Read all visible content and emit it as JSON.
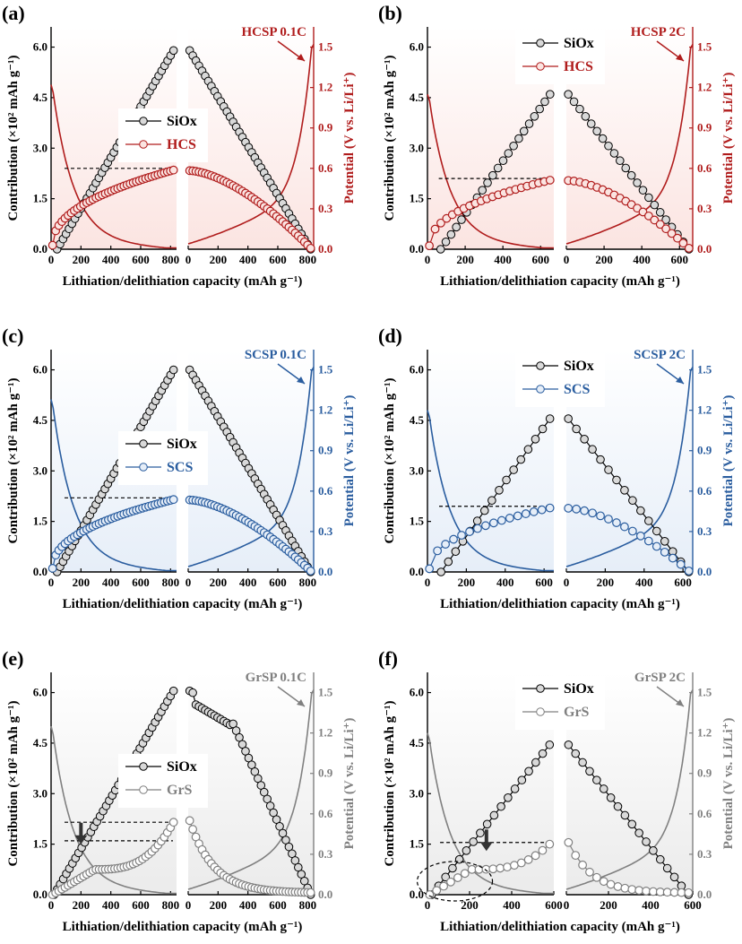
{
  "chart_data": [
    {
      "type": "line",
      "panel_label": "(a)",
      "annotation": "HCSP 0.1C",
      "accent": "#b01c1c",
      "fill": "#fbe4e1",
      "xlabel": "Lithiation/delithiation capacity (mAh g⁻¹)",
      "ylabel_left": "Contribution (×10² mAh g⁻¹)",
      "ylabel_right": "Potential (V vs. Li/Li⁺)",
      "xticks_left": [
        "0",
        "200",
        "400",
        "600",
        "800"
      ],
      "xticks_right": [
        "0",
        "200",
        "400",
        "600",
        "800"
      ],
      "yticks_left": [
        "0.0",
        "1.5",
        "3.0",
        "4.5",
        "6.0"
      ],
      "yticks_right": [
        "0.0",
        "0.3",
        "0.6",
        "0.9",
        "1.2",
        "1.5"
      ],
      "ylim_left": [
        0,
        6.6
      ],
      "ylim_right": [
        0,
        1.65
      ],
      "legend": [
        "SiOx",
        "HCS"
      ],
      "dashed_lines": [
        2.4
      ],
      "lith_cap": 840,
      "delith_cap": 840,
      "siox_onset": 40,
      "siox_max": 5.9,
      "siox_delith_plateau": false,
      "carbon_end": 2.35,
      "carbon_shape": "ramp",
      "n_points": 40,
      "curve_start": 1.22,
      "curve_end": 1.52,
      "show_arrow": false,
      "show_circle": false
    },
    {
      "type": "line",
      "panel_label": "(b)",
      "annotation": "HCSP 2C",
      "accent": "#b01c1c",
      "fill": "#fbe4e1",
      "xlabel": "Lithiation/delithiation capacity (mAh g⁻¹)",
      "ylabel_left": "Contribution (×10² mAh g⁻¹)",
      "ylabel_right": "Potential (V vs. Li/Li⁺)",
      "xticks_left": [
        "0",
        "200",
        "400",
        "600"
      ],
      "xticks_right": [
        "0",
        "200",
        "400",
        "600"
      ],
      "yticks_left": [
        "0.0",
        "1.5",
        "3.0",
        "4.5",
        "6.0"
      ],
      "yticks_right": [
        "0.0",
        "0.3",
        "0.6",
        "0.9",
        "1.2",
        "1.5"
      ],
      "ylim_left": [
        0,
        6.6
      ],
      "ylim_right": [
        0,
        1.65
      ],
      "legend": [
        "SiOx",
        "HCS"
      ],
      "dashed_lines": [
        2.1
      ],
      "lith_cap": 670,
      "delith_cap": 670,
      "siox_onset": 70,
      "siox_max": 4.6,
      "siox_delith_plateau": false,
      "carbon_end": 2.05,
      "carbon_shape": "ramp",
      "n_points": 22,
      "curve_start": 1.15,
      "curve_end": 1.52,
      "show_arrow": false,
      "show_circle": false
    },
    {
      "type": "line",
      "panel_label": "(c)",
      "annotation": "SCSP 0.1C",
      "accent": "#2a5d9f",
      "fill": "#e6eef8",
      "xlabel": "Lithiation/delithiation capacity (mAh g⁻¹)",
      "ylabel_left": "Contribution (×10² mAh g⁻¹)",
      "ylabel_right": "Potential (V vs. Li/Li⁺)",
      "xticks_left": [
        "0",
        "200",
        "400",
        "600",
        "800"
      ],
      "xticks_right": [
        "0",
        "200",
        "400",
        "600",
        "800"
      ],
      "yticks_left": [
        "0.0",
        "1.5",
        "3.0",
        "4.5",
        "6.0"
      ],
      "yticks_right": [
        "0.0",
        "0.3",
        "0.6",
        "0.9",
        "1.2",
        "1.5"
      ],
      "ylim_left": [
        0,
        6.6
      ],
      "ylim_right": [
        0,
        1.65
      ],
      "legend": [
        "SiOx",
        "SCS"
      ],
      "dashed_lines": [
        2.2
      ],
      "lith_cap": 840,
      "delith_cap": 840,
      "siox_onset": 40,
      "siox_max": 6.0,
      "siox_delith_plateau": false,
      "carbon_end": 2.15,
      "carbon_shape": "ramp",
      "n_points": 40,
      "curve_start": 1.28,
      "curve_end": 1.52,
      "show_arrow": false,
      "show_circle": false
    },
    {
      "type": "line",
      "panel_label": "(d)",
      "annotation": "SCSP 2C",
      "accent": "#2a5d9f",
      "fill": "#e6eef8",
      "xlabel": "Lithiation/delithiation capacity (mAh g⁻¹)",
      "ylabel_left": "Contribution (×10² mAh g⁻¹)",
      "ylabel_right": "Potential (V vs. Li/Li⁺)",
      "xticks_left": [
        "0",
        "200",
        "400",
        "600"
      ],
      "xticks_right": [
        "0",
        "200",
        "400",
        "600"
      ],
      "yticks_left": [
        "0.0",
        "1.5",
        "3.0",
        "4.5",
        "6.0"
      ],
      "yticks_right": [
        "0.0",
        "0.3",
        "0.6",
        "0.9",
        "1.2",
        "1.5"
      ],
      "ylim_left": [
        0,
        6.6
      ],
      "ylim_right": [
        0,
        1.65
      ],
      "legend": [
        "SiOx",
        "SCS"
      ],
      "dashed_lines": [
        1.95
      ],
      "lith_cap": 650,
      "delith_cap": 650,
      "siox_onset": 70,
      "siox_max": 4.55,
      "siox_delith_plateau": false,
      "carbon_end": 1.9,
      "carbon_shape": "ramp",
      "n_points": 16,
      "curve_start": 1.2,
      "curve_end": 1.52,
      "show_arrow": false,
      "show_circle": false
    },
    {
      "type": "line",
      "panel_label": "(e)",
      "annotation": "GrSP 0.1C",
      "accent": "#808080",
      "fill": "#ebebeb",
      "xlabel": "Lithiation/delithiation capacity (mAh g⁻¹)",
      "ylabel_left": "Contribution (×10² mAh g⁻¹)",
      "ylabel_right": "Potential (V vs. Li/Li⁺)",
      "xticks_left": [
        "0",
        "200",
        "400",
        "600",
        "800"
      ],
      "xticks_right": [
        "0",
        "200",
        "400",
        "600",
        "800"
      ],
      "yticks_left": [
        "0.0",
        "1.5",
        "3.0",
        "4.5",
        "6.0"
      ],
      "yticks_right": [
        "0.0",
        "0.3",
        "0.6",
        "0.9",
        "1.2",
        "1.5"
      ],
      "ylim_left": [
        0,
        6.6
      ],
      "ylim_right": [
        0,
        1.65
      ],
      "legend": [
        "SiOx",
        "GrS"
      ],
      "dashed_lines": [
        2.15,
        1.6
      ],
      "lith_cap": 840,
      "delith_cap": 840,
      "siox_onset": 20,
      "siox_max": 6.05,
      "siox_delith_plateau": true,
      "carbon_end": 2.15,
      "carbon_shape": "step",
      "n_points": 40,
      "curve_start": 1.25,
      "curve_end": 1.52,
      "show_arrow": true,
      "arrow_x": 200,
      "arrow_y": 1.55,
      "show_circle": false
    },
    {
      "type": "line",
      "panel_label": "(f)",
      "annotation": "GrSP 2C",
      "accent": "#808080",
      "fill": "#ebebeb",
      "xlabel": "Lithiation/delithiation capacity (mAh g⁻¹)",
      "ylabel_left": "Contribution (×10² mAh g⁻¹)",
      "ylabel_right": "Potential (V vs. Li/Li⁺)",
      "xticks_left": [
        "0",
        "200",
        "400",
        "600"
      ],
      "xticks_right": [
        "0",
        "200",
        "400",
        "600"
      ],
      "yticks_left": [
        "0.0",
        "1.5",
        "3.0",
        "4.5",
        "6.0"
      ],
      "yticks_right": [
        "0.0",
        "0.3",
        "0.6",
        "0.9",
        "1.2",
        "1.5"
      ],
      "ylim_left": [
        0,
        6.6
      ],
      "ylim_right": [
        0,
        1.65
      ],
      "legend": [
        "SiOx",
        "GrS"
      ],
      "dashed_lines": [
        1.55
      ],
      "lith_cap": 600,
      "delith_cap": 600,
      "siox_onset": 20,
      "siox_max": 4.45,
      "siox_delith_plateau": false,
      "carbon_end": 1.5,
      "carbon_shape": "step",
      "n_points": 18,
      "curve_start": 1.2,
      "curve_end": 1.52,
      "show_arrow": true,
      "arrow_x": 280,
      "arrow_y": 1.35,
      "show_circle": true,
      "circle_x": 130,
      "circle_y": 0.4
    }
  ]
}
